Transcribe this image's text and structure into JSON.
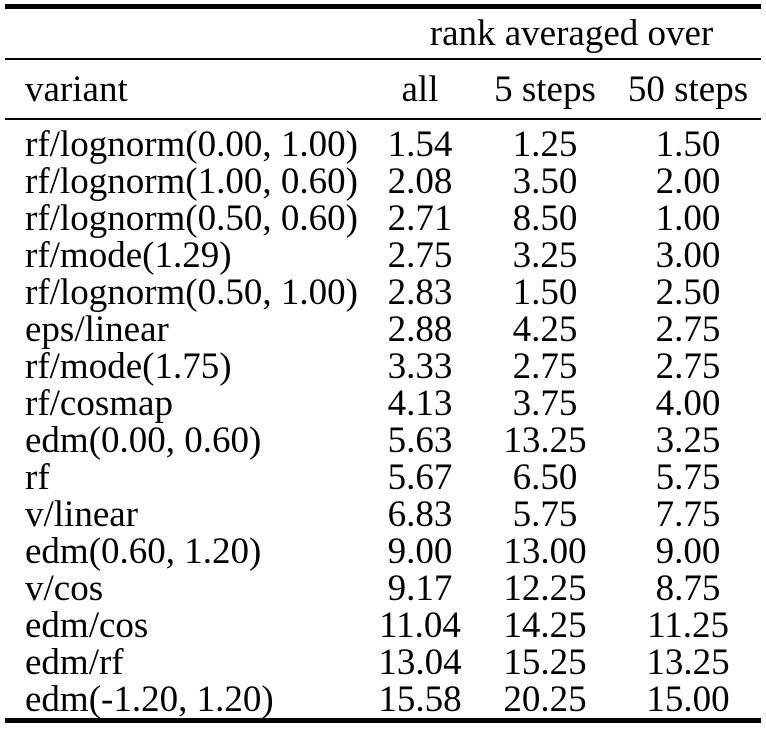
{
  "table": {
    "span_header": "rank averaged over",
    "columns": [
      "variant",
      "all",
      "5 steps",
      "50 steps"
    ],
    "rows": [
      [
        "rf/lognorm(0.00, 1.00)",
        "1.54",
        "1.25",
        "1.50"
      ],
      [
        "rf/lognorm(1.00, 0.60)",
        "2.08",
        "3.50",
        "2.00"
      ],
      [
        "rf/lognorm(0.50, 0.60)",
        "2.71",
        "8.50",
        "1.00"
      ],
      [
        "rf/mode(1.29)",
        "2.75",
        "3.25",
        "3.00"
      ],
      [
        "rf/lognorm(0.50, 1.00)",
        "2.83",
        "1.50",
        "2.50"
      ],
      [
        "eps/linear",
        "2.88",
        "4.25",
        "2.75"
      ],
      [
        "rf/mode(1.75)",
        "3.33",
        "2.75",
        "2.75"
      ],
      [
        "rf/cosmap",
        "4.13",
        "3.75",
        "4.00"
      ],
      [
        "edm(0.00, 0.60)",
        "5.63",
        "13.25",
        "3.25"
      ],
      [
        "rf",
        "5.67",
        "6.50",
        "5.75"
      ],
      [
        "v/linear",
        "6.83",
        "5.75",
        "7.75"
      ],
      [
        "edm(0.60, 1.20)",
        "9.00",
        "13.00",
        "9.00"
      ],
      [
        "v/cos",
        "9.17",
        "12.25",
        "8.75"
      ],
      [
        "edm/cos",
        "11.04",
        "14.25",
        "11.25"
      ],
      [
        "edm/rf",
        "13.04",
        "15.25",
        "13.25"
      ],
      [
        "edm(-1.20, 1.20)",
        "15.58",
        "20.25",
        "15.00"
      ]
    ],
    "text_color": "#000000",
    "rule_color": "#000000",
    "background_color": "#ffffff"
  }
}
